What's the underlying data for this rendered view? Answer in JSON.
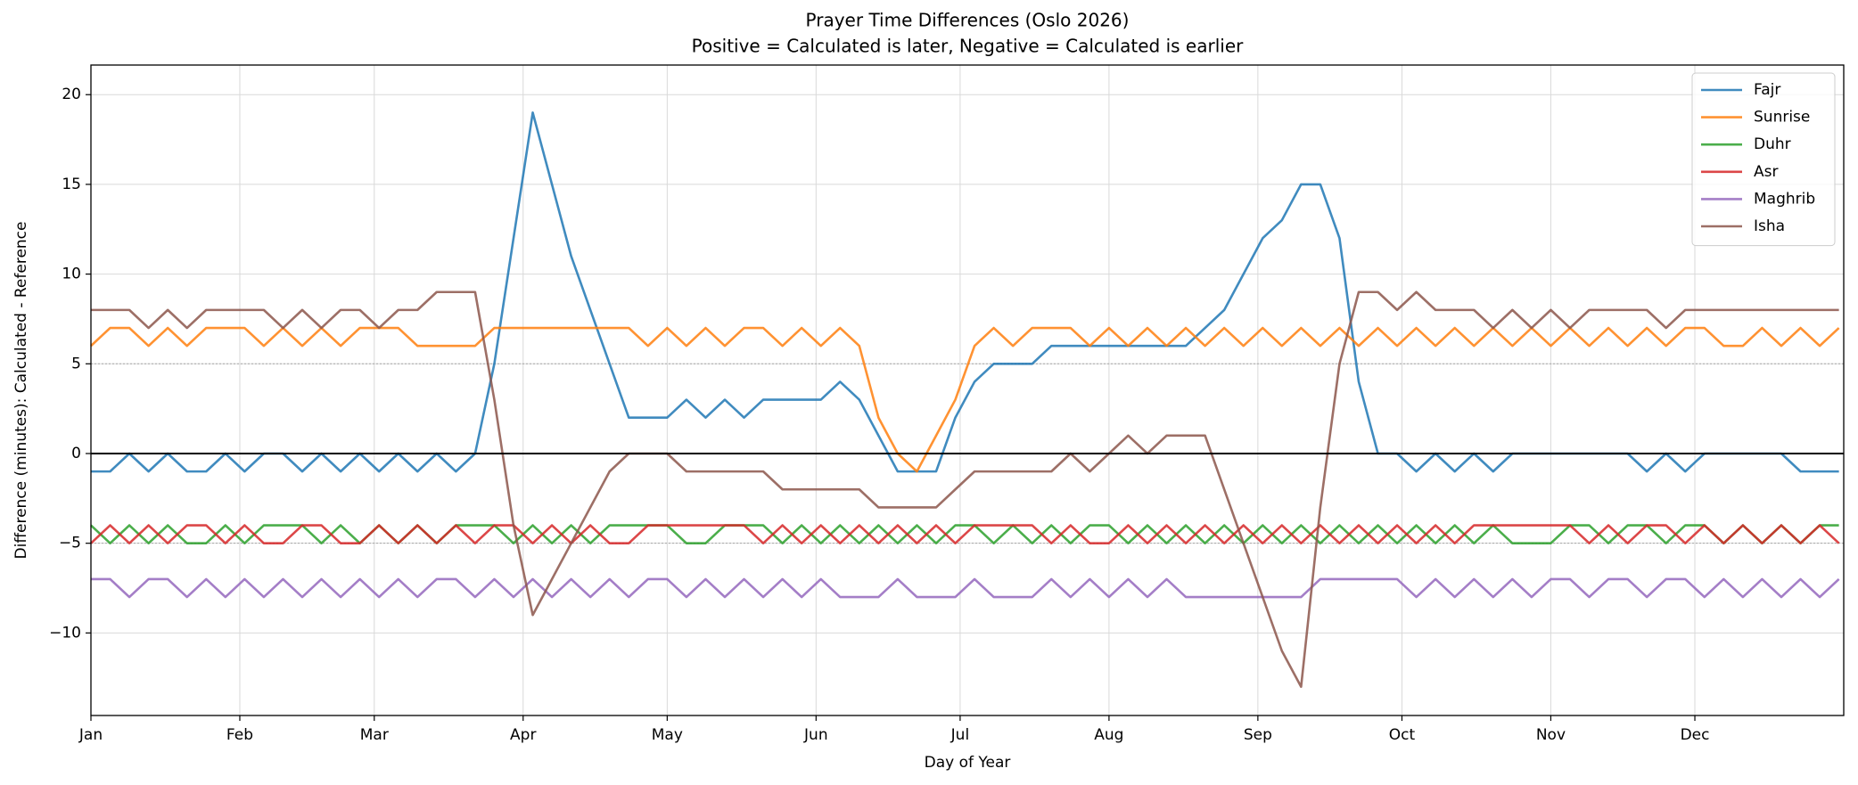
{
  "chart_data": {
    "type": "line",
    "title": "Prayer Time Differences (Oslo 2026)",
    "subtitle": "Positive = Calculated is later, Negative = Calculated is earlier",
    "x_label": "Day of Year",
    "y_label": "Difference (minutes): Calculated - Reference",
    "x": [
      1,
      5,
      9,
      13,
      17,
      21,
      25,
      29,
      33,
      37,
      41,
      45,
      49,
      53,
      57,
      61,
      65,
      69,
      73,
      77,
      81,
      85,
      89,
      93,
      97,
      101,
      105,
      109,
      113,
      117,
      121,
      125,
      129,
      133,
      137,
      141,
      145,
      149,
      153,
      157,
      161,
      165,
      169,
      173,
      177,
      181,
      185,
      189,
      193,
      197,
      201,
      205,
      209,
      213,
      217,
      221,
      225,
      229,
      233,
      237,
      241,
      245,
      249,
      253,
      257,
      261,
      265,
      269,
      273,
      277,
      281,
      285,
      289,
      293,
      297,
      301,
      305,
      309,
      313,
      317,
      321,
      325,
      329,
      333,
      337,
      341,
      345,
      349,
      353,
      357,
      361,
      365
    ],
    "xlim": [
      1,
      366
    ],
    "xticks": [
      {
        "value": 1,
        "label": "Jan"
      },
      {
        "value": 32,
        "label": "Feb"
      },
      {
        "value": 60,
        "label": "Mar"
      },
      {
        "value": 91,
        "label": "Apr"
      },
      {
        "value": 121,
        "label": "May"
      },
      {
        "value": 152,
        "label": "Jun"
      },
      {
        "value": 182,
        "label": "Jul"
      },
      {
        "value": 213,
        "label": "Aug"
      },
      {
        "value": 244,
        "label": "Sep"
      },
      {
        "value": 274,
        "label": "Oct"
      },
      {
        "value": 305,
        "label": "Nov"
      },
      {
        "value": 335,
        "label": "Dec"
      }
    ],
    "ylim": [
      -14.6,
      21.65
    ],
    "yticks": [
      {
        "value": -10,
        "label": "−10"
      },
      {
        "value": -5,
        "label": "−5"
      },
      0,
      5,
      10,
      15,
      20
    ],
    "grid": true,
    "zero_line": 0,
    "dashed_lines": [
      5,
      -5
    ],
    "legend": "upper right",
    "series": [
      {
        "name": "Fajr",
        "color": "#1f77b4",
        "values": [
          -1,
          -1,
          0,
          -1,
          0,
          -1,
          -1,
          0,
          -1,
          0,
          0,
          -1,
          0,
          -1,
          0,
          -1,
          0,
          -1,
          0,
          -1,
          0,
          5,
          12,
          19,
          15,
          11,
          8,
          5,
          2,
          2,
          2,
          3,
          2,
          3,
          2,
          3,
          3,
          3,
          3,
          4,
          3,
          1,
          -1,
          -1,
          -1,
          2,
          4,
          5,
          5,
          5,
          6,
          6,
          6,
          6,
          6,
          6,
          6,
          6,
          7,
          8,
          10,
          12,
          13,
          15,
          15,
          12,
          4,
          0,
          0,
          -1,
          0,
          -1,
          0,
          -1,
          0,
          0,
          0,
          0,
          0,
          0,
          0,
          -1,
          0,
          -1,
          0,
          0,
          0,
          0,
          0,
          -1,
          -1,
          -1
        ]
      },
      {
        "name": "Sunrise",
        "color": "#ff7f0e",
        "values": [
          6,
          7,
          7,
          6,
          7,
          6,
          7,
          7,
          7,
          6,
          7,
          6,
          7,
          6,
          7,
          7,
          7,
          6,
          6,
          6,
          6,
          7,
          7,
          7,
          7,
          7,
          7,
          7,
          7,
          6,
          7,
          6,
          7,
          6,
          7,
          7,
          6,
          7,
          6,
          7,
          6,
          2,
          0,
          -1,
          1,
          3,
          6,
          7,
          6,
          7,
          7,
          7,
          6,
          7,
          6,
          7,
          6,
          7,
          6,
          7,
          6,
          7,
          6,
          7,
          6,
          7,
          6,
          7,
          6,
          7,
          6,
          7,
          6,
          7,
          6,
          7,
          6,
          7,
          6,
          7,
          6,
          7,
          6,
          7,
          7,
          6,
          6,
          7,
          6,
          7,
          6,
          7
        ]
      },
      {
        "name": "Duhr",
        "color": "#2ca02c",
        "values": [
          -4,
          -5,
          -4,
          -5,
          -4,
          -5,
          -5,
          -4,
          -5,
          -4,
          -4,
          -4,
          -5,
          -4,
          -5,
          -4,
          -5,
          -4,
          -5,
          -4,
          -4,
          -4,
          -5,
          -4,
          -5,
          -4,
          -5,
          -4,
          -4,
          -4,
          -4,
          -5,
          -5,
          -4,
          -4,
          -4,
          -5,
          -4,
          -5,
          -4,
          -5,
          -4,
          -5,
          -4,
          -5,
          -4,
          -4,
          -5,
          -4,
          -5,
          -4,
          -5,
          -4,
          -4,
          -5,
          -4,
          -5,
          -4,
          -5,
          -4,
          -5,
          -4,
          -5,
          -4,
          -5,
          -4,
          -5,
          -4,
          -5,
          -4,
          -5,
          -4,
          -5,
          -4,
          -5,
          -5,
          -5,
          -4,
          -4,
          -5,
          -4,
          -4,
          -5,
          -4,
          -4,
          -5,
          -4,
          -5,
          -4,
          -5,
          -4,
          -4
        ]
      },
      {
        "name": "Asr",
        "color": "#d62728",
        "values": [
          -5,
          -4,
          -5,
          -4,
          -5,
          -4,
          -4,
          -5,
          -4,
          -5,
          -5,
          -4,
          -4,
          -5,
          -5,
          -4,
          -5,
          -4,
          -5,
          -4,
          -5,
          -4,
          -4,
          -5,
          -4,
          -5,
          -4,
          -5,
          -5,
          -4,
          -4,
          -4,
          -4,
          -4,
          -4,
          -5,
          -4,
          -5,
          -4,
          -5,
          -4,
          -5,
          -4,
          -5,
          -4,
          -5,
          -4,
          -4,
          -4,
          -4,
          -5,
          -4,
          -5,
          -5,
          -4,
          -5,
          -4,
          -5,
          -4,
          -5,
          -4,
          -5,
          -4,
          -5,
          -4,
          -5,
          -4,
          -5,
          -4,
          -5,
          -4,
          -5,
          -4,
          -4,
          -4,
          -4,
          -4,
          -4,
          -5,
          -4,
          -5,
          -4,
          -4,
          -5,
          -4,
          -5,
          -4,
          -5,
          -4,
          -5,
          -4,
          -5
        ]
      },
      {
        "name": "Maghrib",
        "color": "#9467bd",
        "values": [
          -7,
          -7,
          -8,
          -7,
          -7,
          -8,
          -7,
          -8,
          -7,
          -8,
          -7,
          -8,
          -7,
          -8,
          -7,
          -8,
          -7,
          -8,
          -7,
          -7,
          -8,
          -7,
          -8,
          -7,
          -8,
          -7,
          -8,
          -7,
          -8,
          -7,
          -7,
          -8,
          -7,
          -8,
          -7,
          -8,
          -7,
          -8,
          -7,
          -8,
          -8,
          -8,
          -7,
          -8,
          -8,
          -8,
          -7,
          -8,
          -8,
          -8,
          -7,
          -8,
          -7,
          -8,
          -7,
          -8,
          -7,
          -8,
          -8,
          -8,
          -8,
          -8,
          -8,
          -8,
          -7,
          -7,
          -7,
          -7,
          -7,
          -8,
          -7,
          -8,
          -7,
          -8,
          -7,
          -8,
          -7,
          -7,
          -8,
          -7,
          -7,
          -8,
          -7,
          -7,
          -8,
          -7,
          -8,
          -7,
          -8,
          -7,
          -8,
          -7
        ]
      },
      {
        "name": "Isha",
        "color": "#8c564b",
        "values": [
          8,
          8,
          8,
          7,
          8,
          7,
          8,
          8,
          8,
          8,
          7,
          8,
          7,
          8,
          8,
          7,
          8,
          8,
          9,
          9,
          9,
          3,
          -4,
          -9,
          -7,
          -5,
          -3,
          -1,
          0,
          0,
          0,
          -1,
          -1,
          -1,
          -1,
          -1,
          -2,
          -2,
          -2,
          -2,
          -2,
          -3,
          -3,
          -3,
          -3,
          -2,
          -1,
          -1,
          -1,
          -1,
          -1,
          0,
          -1,
          0,
          1,
          0,
          1,
          1,
          1,
          -2,
          -5,
          -8,
          -11,
          -13,
          -3,
          5,
          9,
          9,
          8,
          9,
          8,
          8,
          8,
          7,
          8,
          7,
          8,
          7,
          8,
          8,
          8,
          8,
          7,
          8,
          8,
          8,
          8,
          8,
          8,
          8,
          8,
          8
        ]
      }
    ]
  }
}
